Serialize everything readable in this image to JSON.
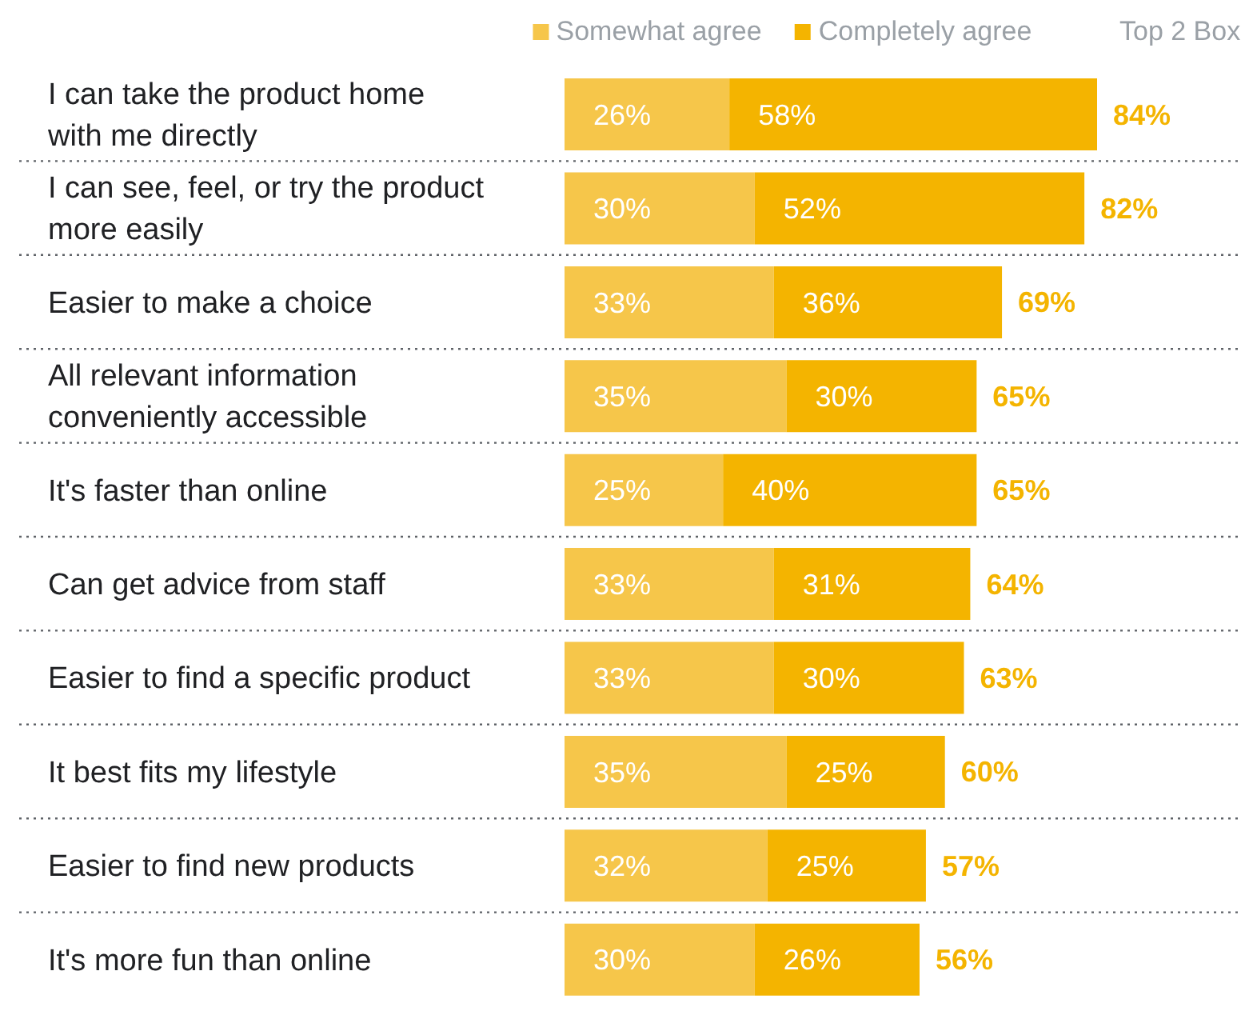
{
  "chart_data": {
    "type": "bar",
    "orientation": "horizontal",
    "stacked": true,
    "categories": [
      "I can take the product home with me directly",
      "I can see, feel, or try the product more easily",
      "Easier to make a choice",
      "All relevant information conveniently accessible",
      "It's faster than online",
      "Can get advice from staff",
      "Easier to find a specific product",
      "It best fits my lifestyle",
      "Easier to find new products",
      "It's more fun than online"
    ],
    "series": [
      {
        "name": "Somewhat agree",
        "color": "#f6c64a",
        "values": [
          26,
          30,
          33,
          35,
          25,
          33,
          33,
          35,
          32,
          30
        ],
        "value_labels": [
          "26%",
          "30%",
          "33%",
          "35%",
          "25%",
          "33%",
          "33%",
          "35%",
          "32%",
          "30%"
        ]
      },
      {
        "name": "Completely agree",
        "color": "#f4b400",
        "values": [
          58,
          52,
          36,
          30,
          40,
          31,
          30,
          25,
          25,
          26
        ],
        "value_labels": [
          "58%",
          "52%",
          "36%",
          "30%",
          "40%",
          "31%",
          "30%",
          "25%",
          "25%",
          "26%"
        ]
      }
    ],
    "totals": [
      "84%",
      "82%",
      "69%",
      "65%",
      "65%",
      "64%",
      "63%",
      "60%",
      "57%",
      "56%"
    ],
    "annotations": [
      "Top 2 Box"
    ],
    "tick_labels": false,
    "grid": "y",
    "legend": "top"
  }
}
